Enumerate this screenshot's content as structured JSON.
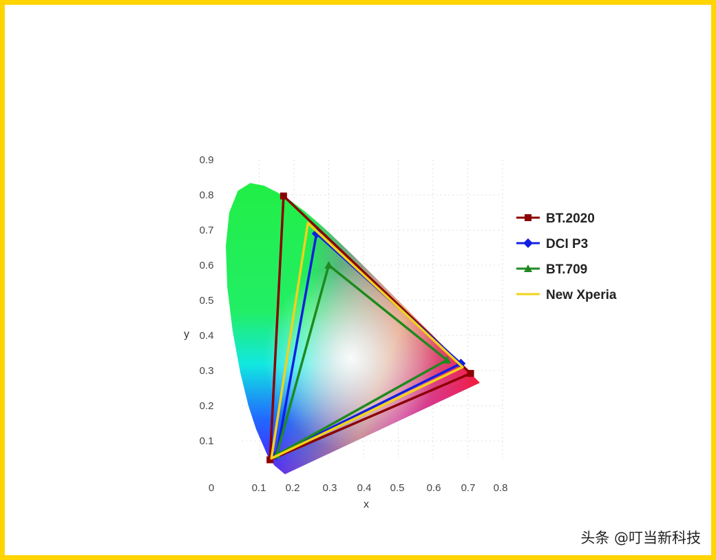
{
  "chart_data": {
    "type": "scatter",
    "title": "",
    "xlabel": "x",
    "ylabel": "y",
    "xlim": [
      0,
      0.8
    ],
    "ylim": [
      0,
      0.9
    ],
    "x_ticks": [
      "0",
      "0.1",
      "0.2",
      "0.3",
      "0.4",
      "0.5",
      "0.6",
      "0.7",
      "0.8"
    ],
    "y_ticks": [
      "0.1",
      "0.2",
      "0.3",
      "0.4",
      "0.5",
      "0.6",
      "0.7",
      "0.8",
      "0.9"
    ],
    "grid": true,
    "legend_position": "right",
    "series": [
      {
        "name": "BT.2020",
        "color": "#8B0000",
        "marker": "square",
        "points": [
          [
            0.708,
            0.292
          ],
          [
            0.17,
            0.797
          ],
          [
            0.131,
            0.046
          ]
        ]
      },
      {
        "name": "DCI P3",
        "color": "#1020E0",
        "marker": "diamond",
        "points": [
          [
            0.68,
            0.32
          ],
          [
            0.265,
            0.69
          ],
          [
            0.15,
            0.06
          ]
        ]
      },
      {
        "name": "BT.709",
        "color": "#1E8A1E",
        "marker": "triangle",
        "points": [
          [
            0.64,
            0.33
          ],
          [
            0.3,
            0.6
          ],
          [
            0.15,
            0.06
          ]
        ]
      },
      {
        "name": "New Xperia",
        "color": "#F2D21A",
        "marker": "none",
        "points": [
          [
            0.685,
            0.31
          ],
          [
            0.24,
            0.72
          ],
          [
            0.135,
            0.05
          ]
        ]
      }
    ]
  },
  "watermark": "头条 @叮当新科技"
}
